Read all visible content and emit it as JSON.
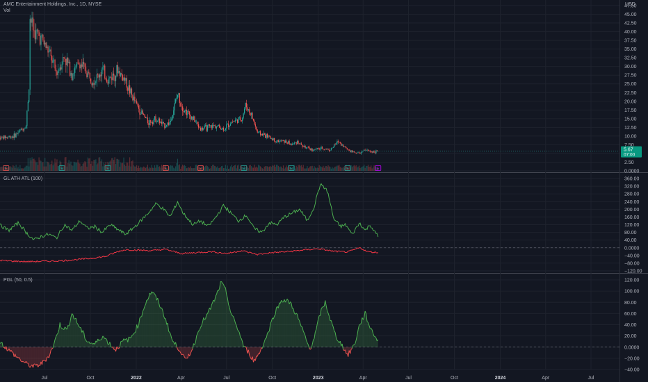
{
  "header": {
    "symbol_line": "AMC Entertainment Holdings, Inc., 1D, NYSE",
    "vol_label": "Vol",
    "currency": "USD"
  },
  "price_tag": {
    "last": "5.67",
    "countdown": "07:00"
  },
  "x_axis_labels": [
    "Jul",
    "Oct",
    "2022",
    "Apr",
    "Jul",
    "Oct",
    "2023",
    "Apr",
    "Jul",
    "Oct",
    "2024",
    "Apr",
    "Jul"
  ],
  "colors": {
    "background": "#131722",
    "up": "#26a69a",
    "down": "#ef5350",
    "green_line": "#4caf50",
    "red_line": "#f23645",
    "tag": "#089981"
  },
  "chart_data": [
    {
      "type": "candlestick",
      "title": "AMC Entertainment Holdings, Inc., 1D, NYSE",
      "ylabel": "USD",
      "ylim": [
        0,
        47.5
      ],
      "y_ticks": [
        0.0,
        2.5,
        5.0,
        7.5,
        10.0,
        12.5,
        15.0,
        17.5,
        20.0,
        22.5,
        25.0,
        27.5,
        30.0,
        32.5,
        35.0,
        37.5,
        40.0,
        42.5,
        45.0,
        47.5
      ],
      "y_tick_labels": [
        "0.0000",
        "2.50",
        "",
        "7.50",
        "10.00",
        "12.50",
        "15.00",
        "17.50",
        "20.00",
        "22.50",
        "25.00",
        "27.50",
        "30.00",
        "32.50",
        "35.00",
        "37.50",
        "40.00",
        "42.50",
        "45.00",
        "47.50"
      ],
      "x_ticks": [
        "Jul",
        "Oct",
        "2022",
        "Apr",
        "Jul",
        "Oct",
        "2023",
        "Apr",
        "Jul",
        "Oct",
        "2024",
        "Apr",
        "Jul"
      ],
      "price_path": [
        [
          "2021-04-01",
          9.5
        ],
        [
          "2021-05-01",
          10.0
        ],
        [
          "2021-05-25",
          13.0
        ],
        [
          "2021-06-01",
          26.0
        ],
        [
          "2021-06-02",
          44.0
        ],
        [
          "2021-06-10",
          40.0
        ],
        [
          "2021-06-25",
          38.0
        ],
        [
          "2021-07-10",
          34.0
        ],
        [
          "2021-07-25",
          28.0
        ],
        [
          "2021-08-10",
          33.0
        ],
        [
          "2021-08-25",
          28.0
        ],
        [
          "2021-09-10",
          31.0
        ],
        [
          "2021-09-25",
          28.0
        ],
        [
          "2021-10-10",
          26.0
        ],
        [
          "2021-10-25",
          29.0
        ],
        [
          "2021-11-05",
          26.0
        ],
        [
          "2021-11-25",
          29.0
        ],
        [
          "2021-12-10",
          26.0
        ],
        [
          "2021-12-25",
          21.0
        ],
        [
          "2022-01-10",
          17.0
        ],
        [
          "2022-01-25",
          14.0
        ],
        [
          "2022-02-10",
          15.0
        ],
        [
          "2022-02-25",
          13.0
        ],
        [
          "2022-03-10",
          14.0
        ],
        [
          "2022-03-25",
          22.0
        ],
        [
          "2022-04-05",
          18.0
        ],
        [
          "2022-04-25",
          15.0
        ],
        [
          "2022-05-10",
          12.0
        ],
        [
          "2022-05-25",
          12.5
        ],
        [
          "2022-06-10",
          13.0
        ],
        [
          "2022-06-25",
          12.0
        ],
        [
          "2022-07-10",
          14.0
        ],
        [
          "2022-08-01",
          15.0
        ],
        [
          "2022-08-08",
          19.0
        ],
        [
          "2022-08-20",
          16.0
        ],
        [
          "2022-09-01",
          11.0
        ],
        [
          "2022-09-20",
          10.0
        ],
        [
          "2022-10-10",
          8.5
        ],
        [
          "2022-10-25",
          8.5
        ],
        [
          "2022-11-10",
          7.5
        ],
        [
          "2022-11-20",
          8.5
        ],
        [
          "2022-12-01",
          7.0
        ],
        [
          "2022-12-20",
          6.0
        ],
        [
          "2023-01-10",
          6.5
        ],
        [
          "2023-01-25",
          6.0
        ],
        [
          "2023-02-10",
          8.5
        ],
        [
          "2023-02-25",
          6.5
        ],
        [
          "2023-03-10",
          5.5
        ],
        [
          "2023-03-25",
          5.0
        ],
        [
          "2023-04-05",
          6.0
        ],
        [
          "2023-04-20",
          5.5
        ],
        [
          "2023-05-01",
          5.67
        ]
      ],
      "last_price": 5.67,
      "volume_label": "Vol",
      "event_markers": [
        "E",
        "E",
        "E",
        "E",
        "E",
        "E",
        "E",
        "E",
        "E"
      ]
    },
    {
      "type": "line",
      "title": "GL ATH ATL (100)",
      "ylim": [
        -120,
        360
      ],
      "y_ticks": [
        -120,
        -80,
        -40,
        0,
        40,
        80,
        120,
        160,
        200,
        240,
        280,
        320,
        360
      ],
      "y_tick_labels": [
        "−120.00",
        "−80.00",
        "−40.00",
        "0.0000",
        "40.00",
        "80.00",
        "120.00",
        "160.00",
        "200.00",
        "240.00",
        "280.00",
        "320.00",
        "360.00"
      ],
      "series": [
        {
          "color": "#4caf50",
          "values": [
            [
              "2021-04-01",
              120
            ],
            [
              "2021-04-20",
              90
            ],
            [
              "2021-05-10",
              130
            ],
            [
              "2021-05-25",
              80
            ],
            [
              "2021-06-10",
              40
            ],
            [
              "2021-06-25",
              60
            ],
            [
              "2021-07-10",
              70
            ],
            [
              "2021-07-25",
              50
            ],
            [
              "2021-08-10",
              120
            ],
            [
              "2021-08-25",
              90
            ],
            [
              "2021-09-10",
              140
            ],
            [
              "2021-09-25",
              100
            ],
            [
              "2021-10-10",
              110
            ],
            [
              "2021-10-25",
              80
            ],
            [
              "2021-11-10",
              120
            ],
            [
              "2021-11-25",
              95
            ],
            [
              "2021-12-10",
              70
            ],
            [
              "2021-12-25",
              100
            ],
            [
              "2022-01-10",
              140
            ],
            [
              "2022-01-25",
              180
            ],
            [
              "2022-02-10",
              230
            ],
            [
              "2022-02-25",
              200
            ],
            [
              "2022-03-10",
              160
            ],
            [
              "2022-03-25",
              240
            ],
            [
              "2022-04-05",
              180
            ],
            [
              "2022-04-25",
              120
            ],
            [
              "2022-05-10",
              140
            ],
            [
              "2022-05-25",
              110
            ],
            [
              "2022-06-10",
              160
            ],
            [
              "2022-06-25",
              220
            ],
            [
              "2022-07-10",
              180
            ],
            [
              "2022-07-25",
              140
            ],
            [
              "2022-08-10",
              170
            ],
            [
              "2022-08-25",
              100
            ],
            [
              "2022-09-10",
              80
            ],
            [
              "2022-09-25",
              130
            ],
            [
              "2022-10-10",
              120
            ],
            [
              "2022-10-25",
              160
            ],
            [
              "2022-11-10",
              180
            ],
            [
              "2022-11-25",
              200
            ],
            [
              "2022-12-10",
              140
            ],
            [
              "2022-12-25",
              220
            ],
            [
              "2023-01-01",
              300
            ],
            [
              "2023-01-08",
              330
            ],
            [
              "2023-01-20",
              290
            ],
            [
              "2023-02-01",
              150
            ],
            [
              "2023-02-15",
              110
            ],
            [
              "2023-02-25",
              120
            ],
            [
              "2023-03-10",
              70
            ],
            [
              "2023-03-25",
              130
            ],
            [
              "2023-04-05",
              90
            ],
            [
              "2023-04-15",
              120
            ],
            [
              "2023-04-25",
              80
            ],
            [
              "2023-05-01",
              60
            ]
          ]
        },
        {
          "color": "#f23645",
          "values": [
            [
              "2021-04-01",
              -65
            ],
            [
              "2021-05-01",
              -70
            ],
            [
              "2021-06-01",
              -72
            ],
            [
              "2021-07-01",
              -70
            ],
            [
              "2021-08-01",
              -68
            ],
            [
              "2021-09-01",
              -62
            ],
            [
              "2021-10-01",
              -55
            ],
            [
              "2021-11-01",
              -45
            ],
            [
              "2021-11-25",
              -20
            ],
            [
              "2021-12-10",
              -10
            ],
            [
              "2022-01-01",
              -12
            ],
            [
              "2022-02-01",
              -15
            ],
            [
              "2022-03-01",
              -8
            ],
            [
              "2022-04-01",
              -30
            ],
            [
              "2022-05-01",
              -25
            ],
            [
              "2022-06-01",
              -20
            ],
            [
              "2022-07-01",
              -30
            ],
            [
              "2022-08-01",
              -15
            ],
            [
              "2022-09-01",
              -35
            ],
            [
              "2022-10-01",
              -25
            ],
            [
              "2022-11-01",
              -20
            ],
            [
              "2022-12-01",
              -12
            ],
            [
              "2023-01-01",
              -5
            ],
            [
              "2023-02-01",
              -18
            ],
            [
              "2023-03-01",
              -22
            ],
            [
              "2023-03-25",
              0
            ],
            [
              "2023-04-10",
              -20
            ],
            [
              "2023-05-01",
              -25
            ]
          ]
        }
      ]
    },
    {
      "type": "area",
      "title": "PGL (50, 0.5)",
      "ylim": [
        -40,
        120
      ],
      "y_ticks": [
        -40,
        -20,
        0,
        20,
        40,
        60,
        80,
        100,
        120
      ],
      "y_tick_labels": [
        "−40.00",
        "−20.00",
        "0.0000",
        "20.00",
        "40.00",
        "60.00",
        "80.00",
        "100.00",
        "120.00"
      ],
      "series": [
        {
          "values": [
            [
              "2021-04-01",
              10
            ],
            [
              "2021-04-20",
              -5
            ],
            [
              "2021-05-10",
              -20
            ],
            [
              "2021-05-25",
              -30
            ],
            [
              "2021-06-10",
              -35
            ],
            [
              "2021-06-25",
              -30
            ],
            [
              "2021-07-10",
              -15
            ],
            [
              "2021-07-20",
              5
            ],
            [
              "2021-08-01",
              40
            ],
            [
              "2021-08-15",
              30
            ],
            [
              "2021-08-25",
              60
            ],
            [
              "2021-09-10",
              35
            ],
            [
              "2021-09-25",
              10
            ],
            [
              "2021-10-10",
              5
            ],
            [
              "2021-10-25",
              20
            ],
            [
              "2021-11-10",
              5
            ],
            [
              "2021-11-20",
              -5
            ],
            [
              "2021-12-05",
              10
            ],
            [
              "2021-12-20",
              15
            ],
            [
              "2022-01-05",
              40
            ],
            [
              "2022-01-20",
              80
            ],
            [
              "2022-02-01",
              100
            ],
            [
              "2022-02-15",
              80
            ],
            [
              "2022-03-01",
              50
            ],
            [
              "2022-03-15",
              10
            ],
            [
              "2022-03-30",
              -5
            ],
            [
              "2022-04-10",
              -25
            ],
            [
              "2022-04-25",
              0
            ],
            [
              "2022-05-10",
              40
            ],
            [
              "2022-05-25",
              60
            ],
            [
              "2022-06-10",
              90
            ],
            [
              "2022-06-20",
              115
            ],
            [
              "2022-06-30",
              100
            ],
            [
              "2022-07-10",
              60
            ],
            [
              "2022-07-25",
              30
            ],
            [
              "2022-08-05",
              0
            ],
            [
              "2022-08-15",
              -10
            ],
            [
              "2022-08-25",
              -25
            ],
            [
              "2022-09-05",
              -10
            ],
            [
              "2022-09-20",
              20
            ],
            [
              "2022-10-05",
              60
            ],
            [
              "2022-10-20",
              85
            ],
            [
              "2022-11-05",
              80
            ],
            [
              "2022-11-20",
              55
            ],
            [
              "2022-12-05",
              20
            ],
            [
              "2022-12-15",
              -5
            ],
            [
              "2022-12-25",
              20
            ],
            [
              "2023-01-05",
              60
            ],
            [
              "2023-01-15",
              80
            ],
            [
              "2023-01-25",
              50
            ],
            [
              "2023-02-05",
              20
            ],
            [
              "2023-02-20",
              0
            ],
            [
              "2023-03-01",
              -15
            ],
            [
              "2023-03-15",
              5
            ],
            [
              "2023-03-25",
              40
            ],
            [
              "2023-04-05",
              60
            ],
            [
              "2023-04-15",
              35
            ],
            [
              "2023-04-25",
              20
            ],
            [
              "2023-05-01",
              10
            ]
          ]
        }
      ]
    }
  ]
}
